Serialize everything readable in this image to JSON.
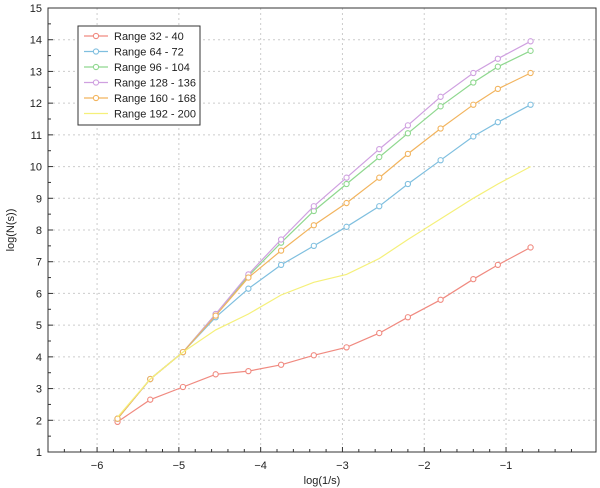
{
  "chart_data": {
    "type": "line",
    "xlabel": "log(1/s)",
    "ylabel": "log(N(s))",
    "xlim": [
      -6.6,
      0.1
    ],
    "ylim": [
      1,
      15
    ],
    "xticks": [
      -6,
      -5,
      -4,
      -3,
      -2,
      -1
    ],
    "xtick_labels": [
      "−6",
      "−5",
      "−4",
      "−3",
      "−2",
      "−1"
    ],
    "yticks": [
      1,
      2,
      3,
      4,
      5,
      6,
      7,
      8,
      9,
      10,
      11,
      12,
      13,
      14,
      15
    ],
    "ytick_labels": [
      "1",
      "2",
      "3",
      "4",
      "5",
      "6",
      "7",
      "8",
      "9",
      "10",
      "11",
      "12",
      "13",
      "14",
      "15"
    ],
    "grid": true,
    "legend_position": "top-left",
    "x": [
      -5.75,
      -5.35,
      -4.95,
      -4.55,
      -4.15,
      -3.75,
      -3.35,
      -2.95,
      -2.55,
      -2.2,
      -1.8,
      -1.4,
      -1.1,
      -0.7
    ],
    "series": [
      {
        "name": "Range 32 - 40",
        "color": "#f08a80",
        "markers": true,
        "values": [
          1.95,
          2.65,
          3.05,
          3.45,
          3.55,
          3.75,
          4.05,
          4.3,
          4.75,
          5.25,
          5.8,
          6.45,
          6.9,
          7.45
        ]
      },
      {
        "name": "Range 64 - 72",
        "color": "#7fbfdf",
        "markers": true,
        "values": [
          2.05,
          3.3,
          4.15,
          5.25,
          6.15,
          6.9,
          7.5,
          8.1,
          8.75,
          9.45,
          10.2,
          10.95,
          11.4,
          11.95
        ]
      },
      {
        "name": "Range 96 - 104",
        "color": "#8fd88f",
        "markers": true,
        "values": [
          2.05,
          3.3,
          4.15,
          5.35,
          6.55,
          7.6,
          8.6,
          9.45,
          10.3,
          11.05,
          11.9,
          12.65,
          13.15,
          13.65
        ]
      },
      {
        "name": "Range 128 - 136",
        "color": "#cfa0e0",
        "markers": true,
        "values": [
          2.05,
          3.3,
          4.15,
          5.35,
          6.6,
          7.7,
          8.75,
          9.65,
          10.55,
          11.3,
          12.2,
          12.95,
          13.4,
          13.95
        ]
      },
      {
        "name": "Range 160 - 168",
        "color": "#f2b45e",
        "markers": true,
        "values": [
          2.05,
          3.3,
          4.15,
          5.3,
          6.5,
          7.35,
          8.15,
          8.85,
          9.65,
          10.4,
          11.2,
          11.95,
          12.45,
          12.95
        ]
      },
      {
        "name": "Range 192 - 200",
        "color": "#f5f07a",
        "markers": false,
        "values": [
          2.1,
          3.3,
          4.15,
          4.85,
          5.35,
          5.95,
          6.35,
          6.6,
          7.1,
          7.7,
          8.35,
          9.0,
          9.45,
          10.0
        ]
      }
    ]
  }
}
